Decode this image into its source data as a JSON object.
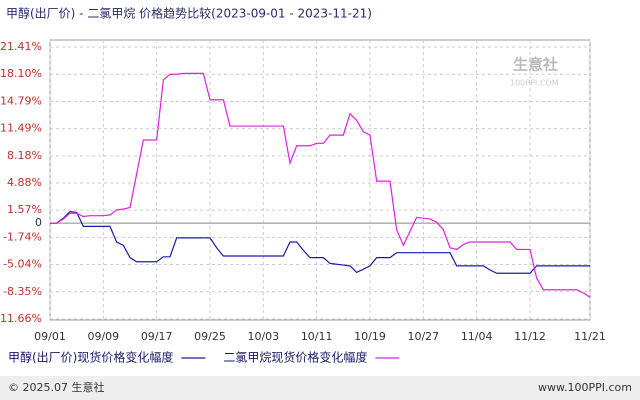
{
  "chart_data": {
    "type": "line",
    "title": "甲醇(出厂价) - 二氯甲烷 价格趋势比较(2023-09-01 - 2023-11-21)",
    "watermark": [
      "生意社",
      "100PPI.COM"
    ],
    "footer_left": "© 2025.07 生意社",
    "footer_right": "www.100PPI.com",
    "categories": [
      "09/01",
      null,
      null,
      null,
      null,
      null,
      null,
      null,
      "09/09",
      null,
      null,
      null,
      null,
      null,
      null,
      null,
      "09/17",
      null,
      null,
      null,
      null,
      null,
      null,
      null,
      "09/25",
      null,
      null,
      null,
      null,
      null,
      null,
      null,
      "10/03",
      null,
      null,
      null,
      null,
      null,
      null,
      null,
      "10/11",
      null,
      null,
      null,
      null,
      null,
      null,
      null,
      "10/19",
      null,
      null,
      null,
      null,
      null,
      null,
      null,
      "10/27",
      null,
      null,
      null,
      null,
      null,
      null,
      null,
      "11/04",
      null,
      null,
      null,
      null,
      null,
      null,
      null,
      "11/12",
      null,
      null,
      null,
      null,
      null,
      null,
      null,
      null,
      "11/21"
    ],
    "series": [
      {
        "name": "甲醇(出厂价)现货价格变化幅度",
        "color": "#1c1ca8",
        "values": [
          0,
          0,
          0.6,
          1.4,
          1.3,
          -0.4,
          -0.4,
          -0.4,
          -0.4,
          -0.4,
          -2.3,
          -2.7,
          -4.2,
          -4.7,
          -4.7,
          -4.7,
          -4.7,
          -4.1,
          -4.1,
          -1.8,
          -1.8,
          -1.8,
          -1.8,
          -1.8,
          -1.8,
          -3.0,
          -4.0,
          -4.0,
          -4.0,
          -4.0,
          -4.0,
          -4.0,
          -4.0,
          -4.0,
          -4.0,
          -4.0,
          -2.3,
          -2.3,
          -3.3,
          -4.2,
          -4.2,
          -4.2,
          -4.9,
          -5.0,
          -5.1,
          -5.2,
          -6.0,
          -5.6,
          -5.2,
          -4.2,
          -4.2,
          -4.2,
          -3.6,
          -3.6,
          -3.6,
          -3.6,
          -3.6,
          -3.6,
          -3.6,
          -3.6,
          -3.6,
          -5.2,
          -5.2,
          -5.2,
          -5.2,
          -5.2,
          -5.7,
          -6.1,
          -6.1,
          -6.1,
          -6.1,
          -6.1,
          -6.1,
          -5.2,
          -5.2,
          -5.2,
          -5.2,
          -5.2,
          -5.2,
          -5.2,
          -5.2,
          -5.2
        ]
      },
      {
        "name": "二氯甲烷现货价格变化幅度",
        "color": "#e020e0",
        "values": [
          0,
          0,
          0.5,
          1.2,
          1.2,
          0.8,
          0.9,
          0.9,
          0.9,
          1.0,
          1.6,
          1.7,
          1.9,
          6,
          10.1,
          10.1,
          10.1,
          17.4,
          18.1,
          18.1,
          18.2,
          18.2,
          18.2,
          18.2,
          15.0,
          15.0,
          15.0,
          11.8,
          11.8,
          11.8,
          11.8,
          11.8,
          11.8,
          11.8,
          11.8,
          11.8,
          7.3,
          9.4,
          9.4,
          9.4,
          9.7,
          9.7,
          10.7,
          10.7,
          10.7,
          13.3,
          12.5,
          11.1,
          10.7,
          5.1,
          5.1,
          5.1,
          -0.8,
          -2.7,
          -1.0,
          0.7,
          0.6,
          0.5,
          0.1,
          -0.8,
          -3.0,
          -3.2,
          -2.6,
          -2.3,
          -2.3,
          -2.3,
          -2.3,
          -2.3,
          -2.3,
          -2.3,
          -3.2,
          -3.2,
          -3.2,
          -6.7,
          -8.1,
          -8.1,
          -8.1,
          -8.1,
          -8.1,
          -8.1,
          -8.5,
          -9.0
        ]
      }
    ],
    "ylim": [
      -11.66,
      21.41
    ],
    "yticks": [
      {
        "value": 21.41,
        "label": "21.41%"
      },
      {
        "value": 18.1,
        "label": "18.10%"
      },
      {
        "value": 14.79,
        "label": "14.79%"
      },
      {
        "value": 11.49,
        "label": "11.49%"
      },
      {
        "value": 8.18,
        "label": "8.18%"
      },
      {
        "value": 4.88,
        "label": "4.88%"
      },
      {
        "value": 1.57,
        "label": "1.57%"
      },
      0,
      {
        "value": -1.74,
        "label": "-1.74%"
      },
      {
        "value": -5.04,
        "label": "-5.04%"
      },
      {
        "value": -8.35,
        "label": "-8.35%"
      },
      {
        "value": -11.66,
        "label": "-11.66%"
      }
    ],
    "grid": true
  }
}
